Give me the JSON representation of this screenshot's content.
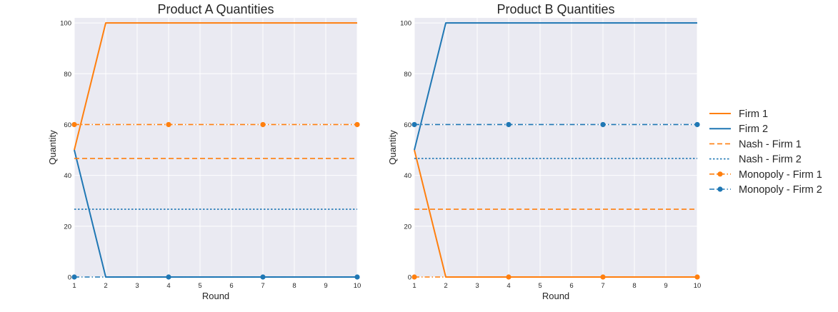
{
  "chart_data": [
    {
      "type": "line",
      "title": "Product A Quantities",
      "xlabel": "Round",
      "ylabel": "Quantity",
      "x": [
        1,
        2,
        3,
        4,
        5,
        6,
        7,
        8,
        9,
        10
      ],
      "xlim": [
        1,
        10
      ],
      "ylim": [
        0,
        102
      ],
      "xticks": [
        "1",
        "2",
        "3",
        "4",
        "5",
        "6",
        "7",
        "8",
        "9",
        "10"
      ],
      "yticks": [
        "0",
        "20",
        "40",
        "60",
        "80",
        "100"
      ],
      "grid": true,
      "series": [
        {
          "name": "Firm 1",
          "key": "firm1",
          "style": "solid",
          "values": [
            50,
            100,
            100,
            100,
            100,
            100,
            100,
            100,
            100,
            100
          ]
        },
        {
          "name": "Firm 2",
          "key": "firm2",
          "style": "solid",
          "values": [
            50,
            0,
            0,
            0,
            0,
            0,
            0,
            0,
            0,
            0
          ]
        },
        {
          "name": "Nash - Firm 1",
          "key": "firm1",
          "style": "dashed",
          "values": [
            46.67,
            46.67,
            46.67,
            46.67,
            46.67,
            46.67,
            46.67,
            46.67,
            46.67,
            46.67
          ]
        },
        {
          "name": "Nash - Firm 2",
          "key": "firm2",
          "style": "dotted",
          "values": [
            26.67,
            26.67,
            26.67,
            26.67,
            26.67,
            26.67,
            26.67,
            26.67,
            26.67,
            26.67
          ]
        },
        {
          "name": "Monopoly - Firm 1",
          "key": "firm1",
          "style": "dashdot",
          "markers": [
            1,
            4,
            7,
            10
          ],
          "values": [
            60,
            60,
            60,
            60,
            60,
            60,
            60,
            60,
            60,
            60
          ]
        },
        {
          "name": "Monopoly - Firm 2",
          "key": "firm2",
          "style": "dashdot",
          "markers": [
            1,
            4,
            7,
            10
          ],
          "values": [
            0,
            0,
            0,
            0,
            0,
            0,
            0,
            0,
            0,
            0
          ]
        }
      ]
    },
    {
      "type": "line",
      "title": "Product B Quantities",
      "xlabel": "Round",
      "ylabel": "Quantity",
      "x": [
        1,
        2,
        3,
        4,
        5,
        6,
        7,
        8,
        9,
        10
      ],
      "xlim": [
        1,
        10
      ],
      "ylim": [
        0,
        102
      ],
      "xticks": [
        "1",
        "2",
        "3",
        "4",
        "5",
        "6",
        "7",
        "8",
        "9",
        "10"
      ],
      "yticks": [
        "0",
        "20",
        "40",
        "60",
        "80",
        "100"
      ],
      "grid": true,
      "series": [
        {
          "name": "Firm 1",
          "key": "firm1",
          "style": "solid",
          "values": [
            50,
            0,
            0,
            0,
            0,
            0,
            0,
            0,
            0,
            0
          ]
        },
        {
          "name": "Firm 2",
          "key": "firm2",
          "style": "solid",
          "values": [
            50,
            100,
            100,
            100,
            100,
            100,
            100,
            100,
            100,
            100
          ]
        },
        {
          "name": "Nash - Firm 1",
          "key": "firm1",
          "style": "dashed",
          "values": [
            26.67,
            26.67,
            26.67,
            26.67,
            26.67,
            26.67,
            26.67,
            26.67,
            26.67,
            26.67
          ]
        },
        {
          "name": "Nash - Firm 2",
          "key": "firm2",
          "style": "dotted",
          "values": [
            46.67,
            46.67,
            46.67,
            46.67,
            46.67,
            46.67,
            46.67,
            46.67,
            46.67,
            46.67
          ]
        },
        {
          "name": "Monopoly - Firm 1",
          "key": "firm1",
          "style": "dashdot",
          "markers": [
            1,
            4,
            7,
            10
          ],
          "values": [
            0,
            0,
            0,
            0,
            0,
            0,
            0,
            0,
            0,
            0
          ]
        },
        {
          "name": "Monopoly - Firm 2",
          "key": "firm2",
          "style": "dashdot",
          "markers": [
            1,
            4,
            7,
            10
          ],
          "values": [
            60,
            60,
            60,
            60,
            60,
            60,
            60,
            60,
            60,
            60
          ]
        }
      ]
    }
  ],
  "legend": {
    "placement": "right",
    "entries": [
      {
        "label": "Firm 1",
        "key": "firm1",
        "style": "solid",
        "marker": false
      },
      {
        "label": "Firm 2",
        "key": "firm2",
        "style": "solid",
        "marker": false
      },
      {
        "label": "Nash - Firm 1",
        "key": "firm1",
        "style": "dashed",
        "marker": false
      },
      {
        "label": "Nash - Firm 2",
        "key": "firm2",
        "style": "dotted",
        "marker": false
      },
      {
        "label": "Monopoly - Firm 1",
        "key": "firm1",
        "style": "dashdot",
        "marker": true
      },
      {
        "label": "Monopoly - Firm 2",
        "key": "firm2",
        "style": "dashdot",
        "marker": true
      }
    ]
  },
  "colors": {
    "firm1": "#ff7f0e",
    "firm2": "#1f77b4",
    "plot_background": "#eaeaf2",
    "grid": "#ffffff",
    "text": "#262626"
  }
}
